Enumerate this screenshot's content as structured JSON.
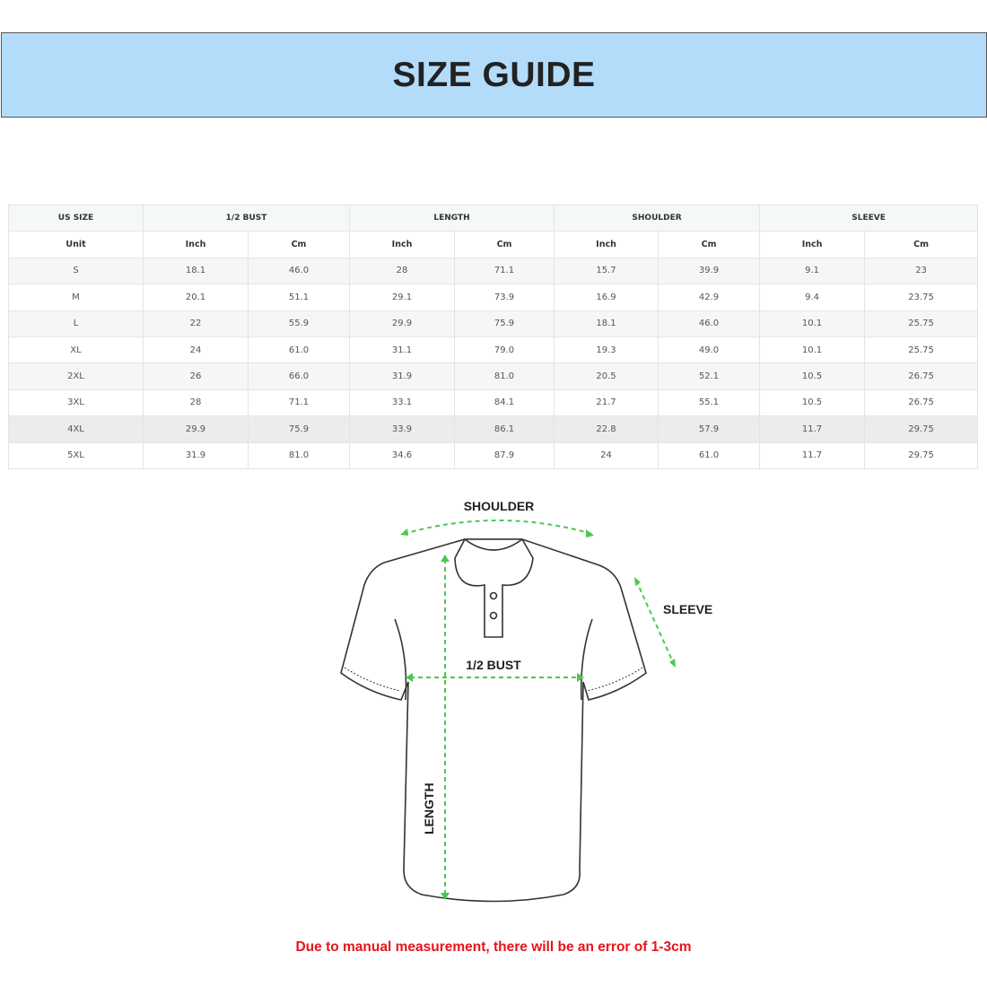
{
  "title": "SIZE GUIDE",
  "table": {
    "groups": [
      "US SIZE",
      "1/2 BUST",
      "LENGTH",
      "SHOULDER",
      "SLEEVE"
    ],
    "units": [
      "Unit",
      "Inch",
      "Cm",
      "Inch",
      "Cm",
      "Inch",
      "Cm",
      "Inch",
      "Cm"
    ],
    "rows": [
      [
        "S",
        "18.1",
        "46.0",
        "28",
        "71.1",
        "15.7",
        "39.9",
        "9.1",
        "23"
      ],
      [
        "M",
        "20.1",
        "51.1",
        "29.1",
        "73.9",
        "16.9",
        "42.9",
        "9.4",
        "23.75"
      ],
      [
        "L",
        "22",
        "55.9",
        "29.9",
        "75.9",
        "18.1",
        "46.0",
        "10.1",
        "25.75"
      ],
      [
        "XL",
        "24",
        "61.0",
        "31.1",
        "79.0",
        "19.3",
        "49.0",
        "10.1",
        "25.75"
      ],
      [
        "2XL",
        "26",
        "66.0",
        "31.9",
        "81.0",
        "20.5",
        "52.1",
        "10.5",
        "26.75"
      ],
      [
        "3XL",
        "28",
        "71.1",
        "33.1",
        "84.1",
        "21.7",
        "55.1",
        "10.5",
        "26.75"
      ],
      [
        "4XL",
        "29.9",
        "75.9",
        "33.9",
        "86.1",
        "22.8",
        "57.9",
        "11.7",
        "29.75"
      ],
      [
        "5XL",
        "31.9",
        "81.0",
        "34.6",
        "87.9",
        "24",
        "61.0",
        "11.7",
        "29.75"
      ]
    ]
  },
  "diagram": {
    "shoulder": "SHOULDER",
    "sleeve": "SLEEVE",
    "bust": "1/2 BUST",
    "length": "LENGTH",
    "arrow_color": "#4cc94c"
  },
  "note": "Due to manual measurement, there will be an error of 1-3cm",
  "colors": {
    "banner": "#b3dcfa",
    "note": "#e8131b"
  }
}
